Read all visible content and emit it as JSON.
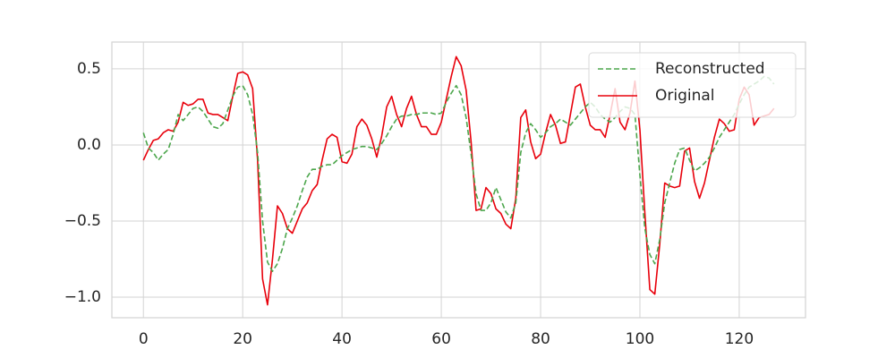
{
  "chart_data": {
    "type": "line",
    "x": [
      0,
      1,
      2,
      3,
      4,
      5,
      6,
      7,
      8,
      9,
      10,
      11,
      12,
      13,
      14,
      15,
      16,
      17,
      18,
      19,
      20,
      21,
      22,
      23,
      24,
      25,
      26,
      27,
      28,
      29,
      30,
      31,
      32,
      33,
      34,
      35,
      36,
      37,
      38,
      39,
      40,
      41,
      42,
      43,
      44,
      45,
      46,
      47,
      48,
      49,
      50,
      51,
      52,
      53,
      54,
      55,
      56,
      57,
      58,
      59,
      60,
      61,
      62,
      63,
      64,
      65,
      66,
      67,
      68,
      69,
      70,
      71,
      72,
      73,
      74,
      75,
      76,
      77,
      78,
      79,
      80,
      81,
      82,
      83,
      84,
      85,
      86,
      87,
      88,
      89,
      90,
      91,
      92,
      93,
      94,
      95,
      96,
      97,
      98,
      99,
      100,
      101,
      102,
      103,
      104,
      105,
      106,
      107,
      108,
      109,
      110,
      111,
      112,
      113,
      114,
      115,
      116,
      117,
      118,
      119,
      120,
      121,
      122,
      123,
      124,
      125,
      126,
      127
    ],
    "series": [
      {
        "name": "Reconstructed",
        "color": "#4ca64c",
        "dashed": true,
        "values": [
          0.08,
          -0.02,
          -0.05,
          -0.1,
          -0.06,
          -0.03,
          0.07,
          0.2,
          0.16,
          0.2,
          0.24,
          0.25,
          0.22,
          0.17,
          0.12,
          0.11,
          0.14,
          0.23,
          0.32,
          0.38,
          0.39,
          0.33,
          0.2,
          -0.05,
          -0.5,
          -0.77,
          -0.83,
          -0.78,
          -0.68,
          -0.55,
          -0.48,
          -0.4,
          -0.3,
          -0.21,
          -0.16,
          -0.16,
          -0.14,
          -0.13,
          -0.13,
          -0.1,
          -0.07,
          -0.05,
          -0.03,
          -0.02,
          -0.01,
          -0.01,
          -0.02,
          -0.03,
          0.01,
          0.06,
          0.12,
          0.17,
          0.19,
          0.19,
          0.2,
          0.2,
          0.21,
          0.21,
          0.21,
          0.2,
          0.21,
          0.28,
          0.34,
          0.39,
          0.33,
          0.18,
          -0.06,
          -0.32,
          -0.43,
          -0.43,
          -0.38,
          -0.28,
          -0.36,
          -0.44,
          -0.48,
          -0.38,
          -0.05,
          0.08,
          0.14,
          0.1,
          0.05,
          0.08,
          0.12,
          0.14,
          0.17,
          0.15,
          0.13,
          0.17,
          0.21,
          0.25,
          0.28,
          0.25,
          0.2,
          0.17,
          0.15,
          0.18,
          0.22,
          0.25,
          0.24,
          0.2,
          -0.2,
          -0.55,
          -0.72,
          -0.78,
          -0.62,
          -0.38,
          -0.25,
          -0.12,
          -0.03,
          -0.02,
          -0.1,
          -0.17,
          -0.15,
          -0.12,
          -0.08,
          -0.02,
          0.05,
          0.1,
          0.15,
          0.2,
          0.27,
          0.33,
          0.38,
          0.4,
          0.42,
          0.45,
          0.44,
          0.4
        ]
      },
      {
        "name": "Original",
        "color": "#e8000b",
        "dashed": false,
        "values": [
          -0.1,
          -0.03,
          0.03,
          0.04,
          0.08,
          0.1,
          0.09,
          0.15,
          0.28,
          0.26,
          0.27,
          0.3,
          0.3,
          0.21,
          0.2,
          0.2,
          0.18,
          0.16,
          0.32,
          0.47,
          0.48,
          0.46,
          0.37,
          -0.1,
          -0.88,
          -1.05,
          -0.75,
          -0.4,
          -0.45,
          -0.55,
          -0.58,
          -0.5,
          -0.42,
          -0.38,
          -0.3,
          -0.26,
          -0.1,
          0.04,
          0.07,
          0.05,
          -0.11,
          -0.12,
          -0.06,
          0.12,
          0.17,
          0.13,
          0.04,
          -0.08,
          0.06,
          0.25,
          0.32,
          0.2,
          0.12,
          0.24,
          0.32,
          0.2,
          0.12,
          0.12,
          0.07,
          0.07,
          0.15,
          0.3,
          0.45,
          0.58,
          0.52,
          0.36,
          0.02,
          -0.43,
          -0.42,
          -0.28,
          -0.32,
          -0.42,
          -0.45,
          -0.52,
          -0.55,
          -0.35,
          0.18,
          0.23,
          0.02,
          -0.09,
          -0.06,
          0.08,
          0.2,
          0.13,
          0.01,
          0.02,
          0.2,
          0.38,
          0.4,
          0.25,
          0.13,
          0.1,
          0.1,
          0.05,
          0.2,
          0.37,
          0.15,
          0.1,
          0.21,
          0.42,
          0.1,
          -0.45,
          -0.95,
          -0.98,
          -0.65,
          -0.25,
          -0.27,
          -0.28,
          -0.27,
          -0.04,
          -0.02,
          -0.24,
          -0.35,
          -0.25,
          -0.1,
          0.05,
          0.17,
          0.14,
          0.09,
          0.1,
          0.3,
          0.38,
          0.33,
          0.13,
          0.18,
          0.19,
          0.2,
          0.24
        ]
      }
    ],
    "xlim": [
      -6.35,
      133.35
    ],
    "ylim": [
      -1.135,
      0.676
    ],
    "xticks": [
      0,
      20,
      40,
      60,
      80,
      100,
      120
    ],
    "yticks": [
      {
        "value": -1,
        "label": "−1.0"
      },
      {
        "value": -0.5,
        "label": "−0.5"
      },
      {
        "value": 0,
        "label": "0.0"
      },
      0.5
    ],
    "grid": true,
    "legend": "upper right"
  }
}
